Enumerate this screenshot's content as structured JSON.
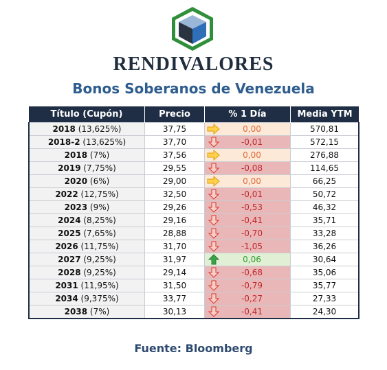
{
  "header": {
    "brand": "RENDIVALORES",
    "title": "Bonos Soberanos de Venezuela"
  },
  "colors": {
    "header_bg": "#1f2e45",
    "title_color": "#2e5d8e",
    "down_bg": "#e9b7b7",
    "up_bg": "#e1f0d5",
    "flat_bg": "#fce9d8",
    "down_text": "#c0282d",
    "up_text": "#2e9a2e",
    "flat_text": "#e06a3a"
  },
  "table": {
    "columns": [
      "Título (Cupón)",
      "Precio",
      "% 1 Día",
      "Media YTM"
    ],
    "rows": [
      {
        "year": "2018",
        "coupon": "(13,625%)",
        "price": "37,75",
        "change": "0,00",
        "trend": "flat",
        "ytm": "570,81"
      },
      {
        "year": "2018-2",
        "coupon": "(13,625%)",
        "price": "37,70",
        "change": "-0,01",
        "trend": "down",
        "ytm": "572,15"
      },
      {
        "year": "2018",
        "coupon": "(7%)",
        "price": "37,56",
        "change": "0,00",
        "trend": "flat",
        "ytm": "276,88"
      },
      {
        "year": "2019",
        "coupon": "(7,75%)",
        "price": "29,55",
        "change": "-0,08",
        "trend": "down",
        "ytm": "114,65"
      },
      {
        "year": "2020",
        "coupon": "(6%)",
        "price": "29,00",
        "change": "0,00",
        "trend": "flat",
        "ytm": "66,25"
      },
      {
        "year": "2022",
        "coupon": "(12,75%)",
        "price": "32,50",
        "change": "-0,01",
        "trend": "down",
        "ytm": "50,72"
      },
      {
        "year": "2023",
        "coupon": "(9%)",
        "price": "29,26",
        "change": "-0,53",
        "trend": "down",
        "ytm": "46,32"
      },
      {
        "year": "2024",
        "coupon": "(8,25%)",
        "price": "29,16",
        "change": "-0,41",
        "trend": "down",
        "ytm": "35,71"
      },
      {
        "year": "2025",
        "coupon": "(7,65%)",
        "price": "28,88",
        "change": "-0,70",
        "trend": "down",
        "ytm": "33,28"
      },
      {
        "year": "2026",
        "coupon": "(11,75%)",
        "price": "31,70",
        "change": "-1,05",
        "trend": "down",
        "ytm": "36,26"
      },
      {
        "year": "2027",
        "coupon": "(9,25%)",
        "price": "31,97",
        "change": "0,06",
        "trend": "up",
        "ytm": "30,64"
      },
      {
        "year": "2028",
        "coupon": "(9,25%)",
        "price": "29,14",
        "change": "-0,68",
        "trend": "down",
        "ytm": "35,06"
      },
      {
        "year": "2031",
        "coupon": "(11,95%)",
        "price": "31,50",
        "change": "-0,79",
        "trend": "down",
        "ytm": "35,77"
      },
      {
        "year": "2034",
        "coupon": "(9,375%)",
        "price": "33,77",
        "change": "-0,27",
        "trend": "down",
        "ytm": "27,33"
      },
      {
        "year": "2038",
        "coupon": "(7%)",
        "price": "30,13",
        "change": "-0,41",
        "trend": "down",
        "ytm": "24,30"
      }
    ]
  },
  "footer": {
    "source": "Fuente: Bloomberg"
  }
}
